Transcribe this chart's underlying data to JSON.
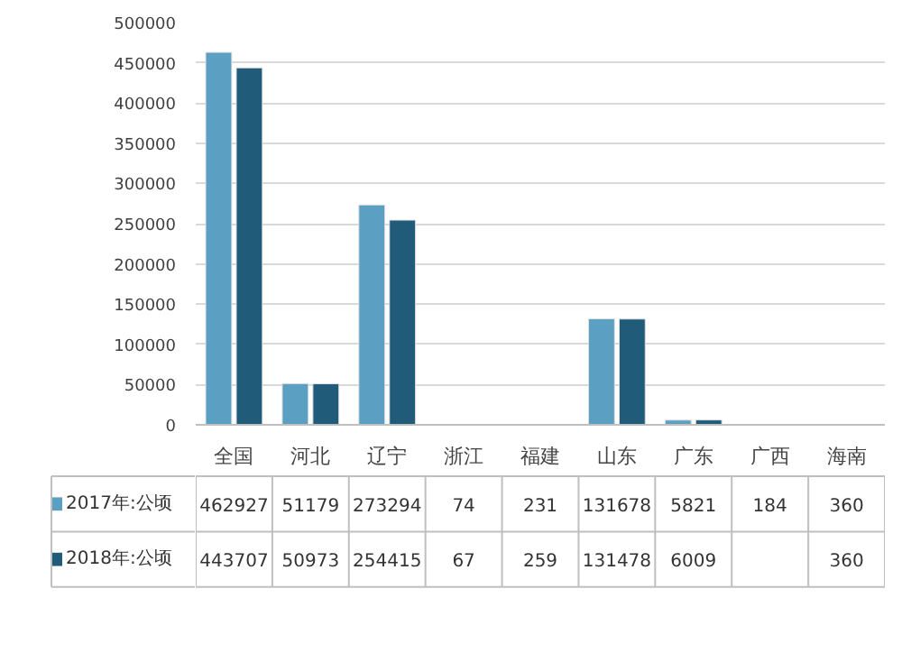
{
  "chart_data": {
    "type": "bar",
    "categories": [
      "全国",
      "河北",
      "辽宁",
      "浙江",
      "福建",
      "山东",
      "广东",
      "广西",
      "海南"
    ],
    "series": [
      {
        "name": "2017年:公顷",
        "color": "#5b9fc2",
        "values": [
          462927,
          51179,
          273294,
          74,
          231,
          131678,
          5821,
          184,
          360
        ]
      },
      {
        "name": "2018年:公顷",
        "color": "#205c7a",
        "values": [
          443707,
          50973,
          254415,
          67,
          259,
          131478,
          6009,
          null,
          360
        ]
      }
    ],
    "ylim": [
      0,
      500000
    ],
    "yticks": [
      0,
      50000,
      100000,
      150000,
      200000,
      250000,
      300000,
      350000,
      400000,
      450000,
      500000
    ],
    "grid": "y",
    "legend": "bottom",
    "data_labels": true
  }
}
